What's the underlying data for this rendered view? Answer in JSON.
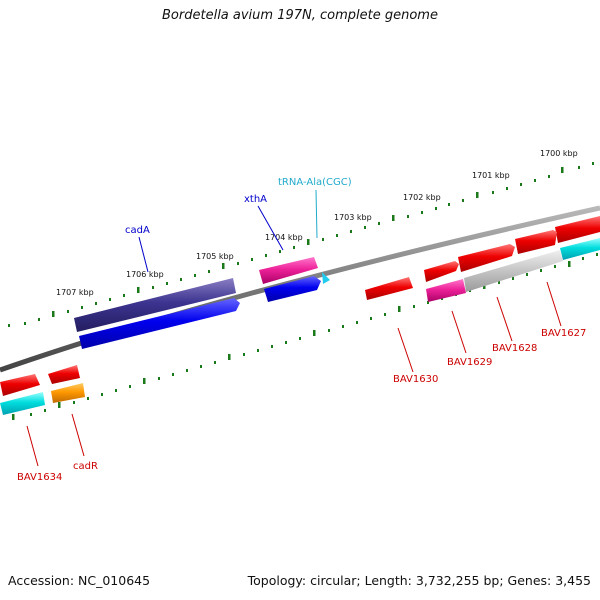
{
  "title": "Bordetella avium 197N, complete genome",
  "footer": {
    "accession": "Accession: NC_010645",
    "topology": "Topology: circular; Length: 3,732,255 bp; Genes: 3,455"
  },
  "colors": {
    "backbone": "#808080",
    "tick": "#1a7a1a",
    "gene_label": "#cc0000",
    "named_gene_label": "#0000cc",
    "trna_label": "#22aacc"
  },
  "kbp_labels": [
    "1700 kbp",
    "1701 kbp",
    "1702 kbp",
    "1703 kbp",
    "1704 kbp",
    "1705 kbp",
    "1706 kbp",
    "1707 kbp"
  ],
  "gene_labels": {
    "trna": "tRNA-Ala(CGC)",
    "xtha": "xthA",
    "cada": "cadA",
    "bav1627": "BAV1627",
    "bav1628": "BAV1628",
    "bav1629": "BAV1629",
    "bav1630": "BAV1630",
    "bav1634": "BAV1634",
    "cadr": "cadR"
  }
}
